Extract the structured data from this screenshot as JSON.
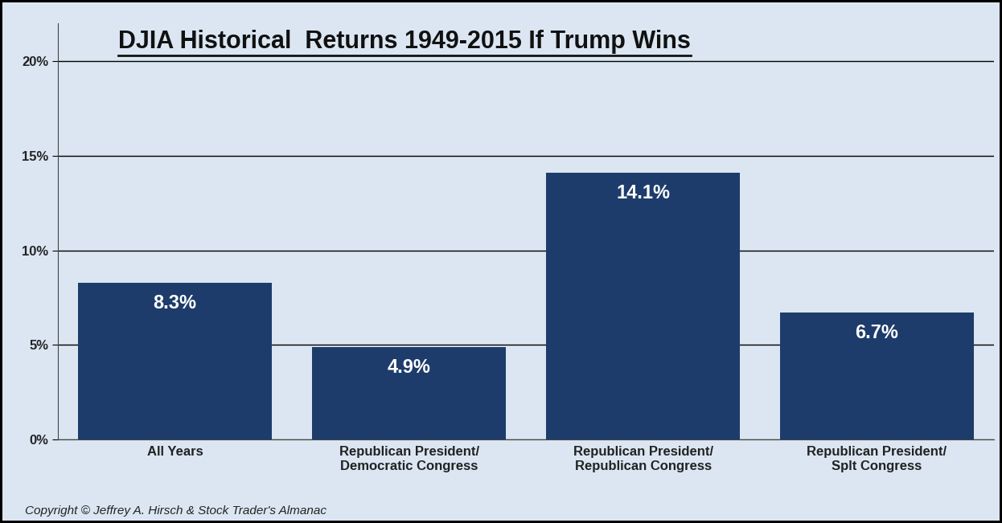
{
  "chart_data": {
    "type": "bar",
    "title": "DJIA Historical  Returns 1949-2015 If Trump Wins",
    "categories": [
      "All Years",
      "Republican President/\nDemocratic Congress",
      "Republican President/\nRepublican Congress",
      "Republican President/\nSplt Congress"
    ],
    "values": [
      8.3,
      4.9,
      14.1,
      6.7
    ],
    "value_labels": [
      "8.3%",
      "4.9%",
      "14.1%",
      "6.7%"
    ],
    "data_labels": true,
    "color": "#1d3c6b",
    "ylim": [
      0,
      22
    ],
    "yticks": [
      {
        "value": 0,
        "label": "0%"
      },
      {
        "value": 5,
        "label": "5%"
      },
      {
        "value": 10,
        "label": "10%"
      },
      {
        "value": 15,
        "label": "15%"
      },
      {
        "value": 20,
        "label": "20%"
      }
    ],
    "grid": true,
    "annotations": [
      "Copyright © Jeffrey A. Hirsch & Stock Trader's Almanac"
    ]
  }
}
